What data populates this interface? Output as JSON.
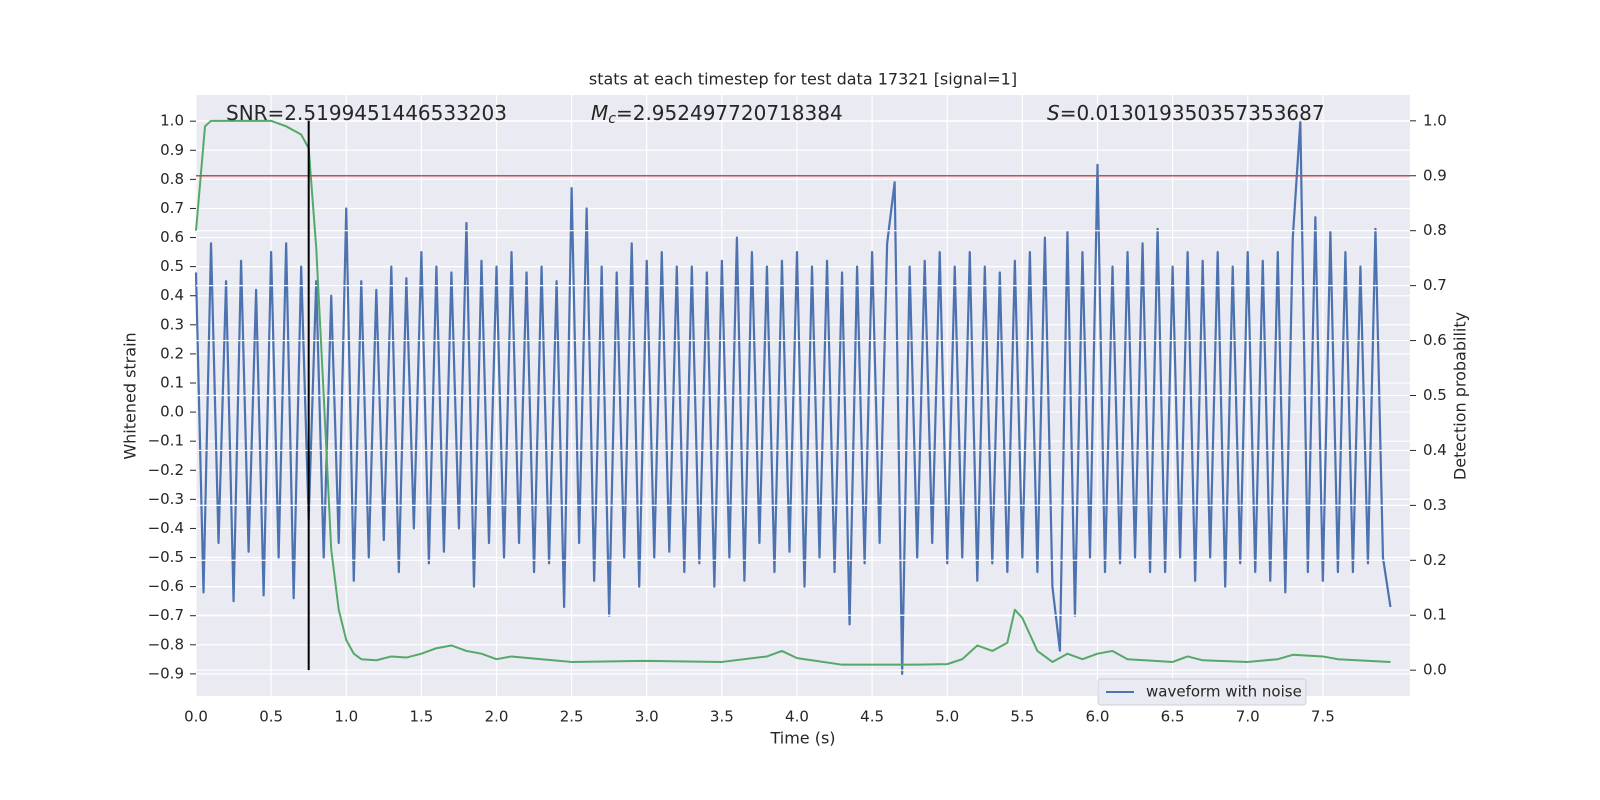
{
  "chart_data": {
    "type": "line",
    "title": "stats at each timestep for test data 17321 [signal=1]",
    "x_label": "Time (s)",
    "y_label": "Whitened strain",
    "y2_label": "Detection probability",
    "annotations": [
      {
        "text": "SNR=2.5199451446533203"
      },
      {
        "symbol": "M",
        "subscript": "c",
        "text": "=2.952497720718384"
      },
      {
        "symbol": "S",
        "text": "=0.013019350357353687"
      }
    ],
    "xlim": [
      0,
      8.08
    ],
    "ylim": [
      -0.976,
      1.09
    ],
    "y2lim": [
      -0.047,
      1.047
    ],
    "xticks": [
      {
        "value": 0,
        "label": "0.0"
      },
      0.5,
      {
        "value": 1,
        "label": "1.0"
      },
      1.5,
      {
        "value": 2,
        "label": "2.0"
      },
      2.5,
      {
        "value": 3,
        "label": "3.0"
      },
      3.5,
      {
        "value": 4,
        "label": "4.0"
      },
      4.5,
      {
        "value": 5,
        "label": "5.0"
      },
      5.5,
      {
        "value": 6,
        "label": "6.0"
      },
      6.5,
      {
        "value": 7,
        "label": "7.0"
      },
      7.5
    ],
    "yticks": [
      {
        "value": -0.9,
        "label": "−0.9"
      },
      {
        "value": -0.8,
        "label": "−0.8"
      },
      {
        "value": -0.7,
        "label": "−0.7"
      },
      {
        "value": -0.6,
        "label": "−0.6"
      },
      {
        "value": -0.5,
        "label": "−0.5"
      },
      {
        "value": -0.4,
        "label": "−0.4"
      },
      {
        "value": -0.3,
        "label": "−0.3"
      },
      {
        "value": -0.2,
        "label": "−0.2"
      },
      {
        "value": -0.1,
        "label": "−0.1"
      },
      {
        "value": 0,
        "label": "0.0"
      },
      0.1,
      0.2,
      0.3,
      0.4,
      0.5,
      0.6,
      0.7,
      0.8,
      0.9,
      {
        "value": 1,
        "label": "1.0"
      }
    ],
    "y2ticks": [
      {
        "value": 0,
        "label": "0.0"
      },
      0.1,
      0.2,
      0.3,
      0.4,
      0.5,
      0.6,
      0.7,
      0.8,
      0.9,
      {
        "value": 1,
        "label": "1.0"
      }
    ],
    "grid": true,
    "threshold": {
      "value": 0.9,
      "axis": "y2",
      "color": "#c44e52"
    },
    "vline": {
      "value": 0.75,
      "color": "#000000"
    },
    "legend": "lower right",
    "series": [
      {
        "name": "waveform with noise",
        "color": "#4c72b0",
        "x": [
          0,
          0.05,
          0.1,
          0.15,
          0.2,
          0.25,
          0.3,
          0.35,
          0.4,
          0.45,
          0.5,
          0.55,
          0.6,
          0.65,
          0.7,
          0.75,
          0.8,
          0.85,
          0.9,
          0.95,
          1,
          1.05,
          1.1,
          1.15,
          1.2,
          1.25,
          1.3,
          1.35,
          1.4,
          1.45,
          1.5,
          1.55,
          1.6,
          1.65,
          1.7,
          1.75,
          1.8,
          1.85,
          1.9,
          1.95,
          2,
          2.05,
          2.1,
          2.15,
          2.2,
          2.25,
          2.3,
          2.35,
          2.4,
          2.45,
          2.5,
          2.55,
          2.6,
          2.65,
          2.7,
          2.75,
          2.8,
          2.85,
          2.9,
          2.95,
          3,
          3.05,
          3.1,
          3.15,
          3.2,
          3.25,
          3.3,
          3.35,
          3.4,
          3.45,
          3.5,
          3.55,
          3.6,
          3.65,
          3.7,
          3.75,
          3.8,
          3.85,
          3.9,
          3.95,
          4,
          4.05,
          4.1,
          4.15,
          4.2,
          4.25,
          4.3,
          4.35,
          4.4,
          4.45,
          4.5,
          4.55,
          4.6,
          4.65,
          4.7,
          4.75,
          4.8,
          4.85,
          4.9,
          4.95,
          5,
          5.05,
          5.1,
          5.15,
          5.2,
          5.25,
          5.3,
          5.35,
          5.4,
          5.45,
          5.5,
          5.55,
          5.6,
          5.65,
          5.7,
          5.75,
          5.8,
          5.85,
          5.9,
          5.95,
          6,
          6.05,
          6.1,
          6.15,
          6.2,
          6.25,
          6.3,
          6.35,
          6.4,
          6.45,
          6.5,
          6.55,
          6.6,
          6.65,
          6.7,
          6.75,
          6.8,
          6.85,
          6.9,
          6.95,
          7,
          7.05,
          7.1,
          7.15,
          7.2,
          7.25,
          7.3,
          7.35,
          7.4,
          7.45,
          7.5,
          7.55,
          7.6,
          7.65,
          7.7,
          7.75,
          7.8,
          7.85,
          7.9,
          7.95
        ],
        "values": [
          0.48,
          -0.62,
          0.58,
          -0.45,
          0.45,
          -0.65,
          0.52,
          -0.48,
          0.42,
          -0.63,
          0.55,
          -0.5,
          0.58,
          -0.64,
          0.5,
          -0.37,
          0.45,
          -0.5,
          0.4,
          -0.45,
          0.7,
          -0.58,
          0.45,
          -0.5,
          0.42,
          -0.44,
          0.5,
          -0.55,
          0.46,
          -0.4,
          0.55,
          -0.52,
          0.5,
          -0.48,
          0.48,
          -0.4,
          0.65,
          -0.6,
          0.52,
          -0.45,
          0.5,
          -0.5,
          0.55,
          -0.45,
          0.48,
          -0.55,
          0.5,
          -0.52,
          0.45,
          -0.67,
          0.77,
          -0.45,
          0.7,
          -0.58,
          0.5,
          -0.7,
          0.48,
          -0.5,
          0.58,
          -0.6,
          0.52,
          -0.5,
          0.55,
          -0.48,
          0.5,
          -0.55,
          0.5,
          -0.52,
          0.48,
          -0.6,
          0.52,
          -0.5,
          0.6,
          -0.58,
          0.55,
          -0.45,
          0.5,
          -0.55,
          0.52,
          -0.48,
          0.55,
          -0.6,
          0.5,
          -0.5,
          0.52,
          -0.55,
          0.48,
          -0.73,
          0.5,
          -0.52,
          0.55,
          -0.45,
          0.58,
          0.79,
          -0.9,
          0.5,
          -0.5,
          0.52,
          -0.45,
          0.55,
          -0.52,
          0.5,
          -0.5,
          0.55,
          -0.58,
          0.5,
          -0.52,
          0.48,
          -0.55,
          0.52,
          -0.5,
          0.55,
          -0.55,
          0.6,
          -0.6,
          -0.82,
          0.62,
          -0.7,
          0.55,
          -0.5,
          0.85,
          -0.55,
          0.5,
          -0.52,
          0.55,
          -0.5,
          0.58,
          -0.55,
          0.63,
          -0.55,
          0.5,
          -0.5,
          0.55,
          -0.58,
          0.52,
          -0.5,
          0.55,
          -0.6,
          0.5,
          -0.52,
          0.55,
          -0.55,
          0.52,
          -0.58,
          0.55,
          -0.62,
          0.6,
          1.0,
          -0.55,
          0.67,
          -0.58,
          0.62,
          -0.55,
          0.55,
          -0.55,
          0.5,
          -0.52,
          0.63,
          -0.5,
          -0.67
        ]
      },
      {
        "color": "#55a868",
        "axis": "y2",
        "x": [
          0,
          0.06,
          0.1,
          0.5,
          0.6,
          0.7,
          0.75,
          0.8,
          0.85,
          0.9,
          0.95,
          1,
          1.05,
          1.1,
          1.2,
          1.3,
          1.4,
          1.5,
          1.6,
          1.7,
          1.8,
          1.9,
          2,
          2.1,
          2.3,
          2.5,
          3,
          3.5,
          3.8,
          3.9,
          4,
          4.3,
          4.8,
          5,
          5.1,
          5.2,
          5.3,
          5.4,
          5.45,
          5.5,
          5.6,
          5.7,
          5.8,
          5.9,
          6,
          6.1,
          6.2,
          6.5,
          6.6,
          6.7,
          7,
          7.2,
          7.3,
          7.5,
          7.6,
          7.95
        ],
        "values": [
          0.8,
          0.99,
          1.0,
          1.0,
          0.99,
          0.975,
          0.95,
          0.77,
          0.5,
          0.22,
          0.11,
          0.055,
          0.03,
          0.02,
          0.018,
          0.025,
          0.023,
          0.03,
          0.04,
          0.045,
          0.035,
          0.03,
          0.02,
          0.025,
          0.02,
          0.015,
          0.017,
          0.015,
          0.025,
          0.035,
          0.022,
          0.01,
          0.01,
          0.011,
          0.02,
          0.045,
          0.035,
          0.05,
          0.11,
          0.095,
          0.035,
          0.015,
          0.03,
          0.02,
          0.03,
          0.035,
          0.02,
          0.015,
          0.025,
          0.018,
          0.015,
          0.02,
          0.028,
          0.025,
          0.02,
          0.015
        ]
      }
    ]
  }
}
